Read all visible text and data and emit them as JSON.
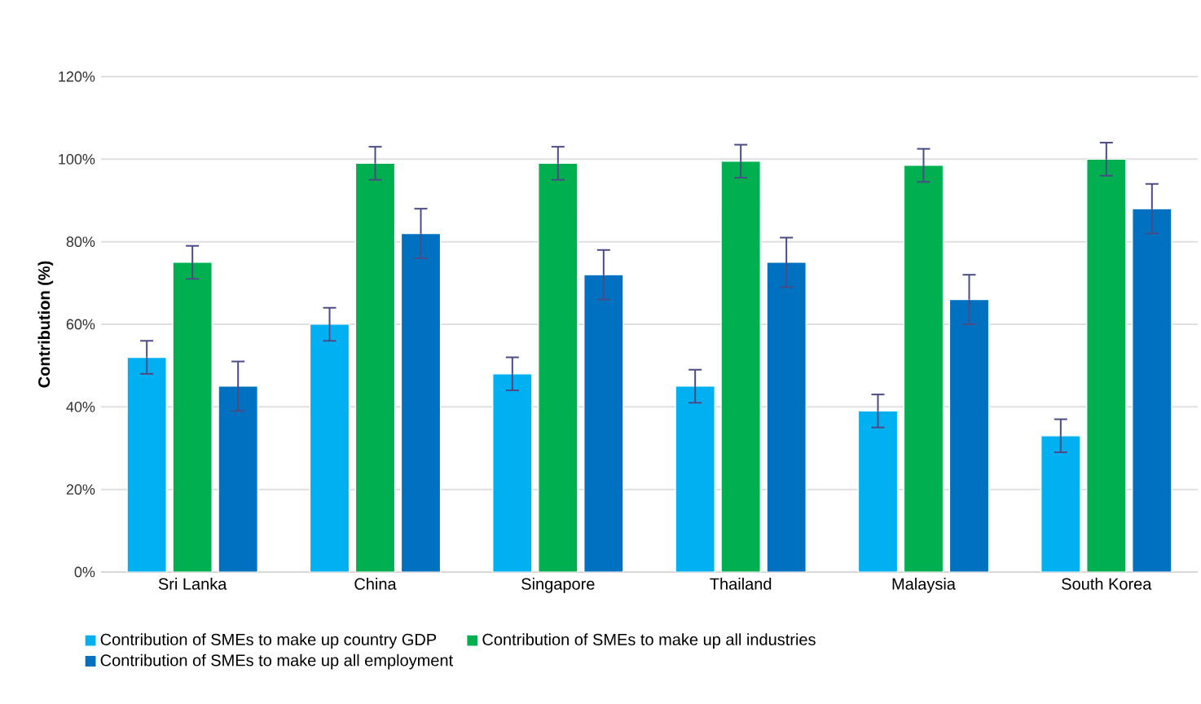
{
  "chart_data": {
    "type": "bar",
    "ylabel": "Contribution (%)",
    "categories": [
      "Sri Lanka",
      "China",
      "Singapore",
      "Thailand",
      "Malaysia",
      "South Korea"
    ],
    "series": [
      {
        "name": "Contribution of SMEs to make up country GDP",
        "color": "#00b0f0",
        "values": [
          52,
          60,
          48,
          45,
          39,
          33
        ],
        "errors": [
          4,
          4,
          4,
          4,
          4,
          4
        ]
      },
      {
        "name": "Contribution of SMEs to make up all industries",
        "color": "#00b050",
        "values": [
          75,
          99,
          99,
          99.5,
          98.5,
          100
        ],
        "errors": [
          4,
          4,
          4,
          4,
          4,
          4
        ]
      },
      {
        "name": "Contribution of SMEs to make up all employment",
        "color": "#0070c0",
        "values": [
          45,
          82,
          72,
          75,
          66,
          88
        ],
        "errors": [
          6,
          6,
          6,
          6,
          6,
          6
        ]
      }
    ],
    "ylim": [
      0,
      120
    ],
    "yticks": [
      {
        "value": 0,
        "label": "0%"
      },
      {
        "value": 20,
        "label": "20%"
      },
      {
        "value": 40,
        "label": "40%"
      },
      {
        "value": 60,
        "label": "60%"
      },
      {
        "value": 80,
        "label": "80%"
      },
      {
        "value": 100,
        "label": "100%"
      },
      {
        "value": 120,
        "label": "120%"
      }
    ],
    "grid": "y",
    "legend": "bottom"
  }
}
